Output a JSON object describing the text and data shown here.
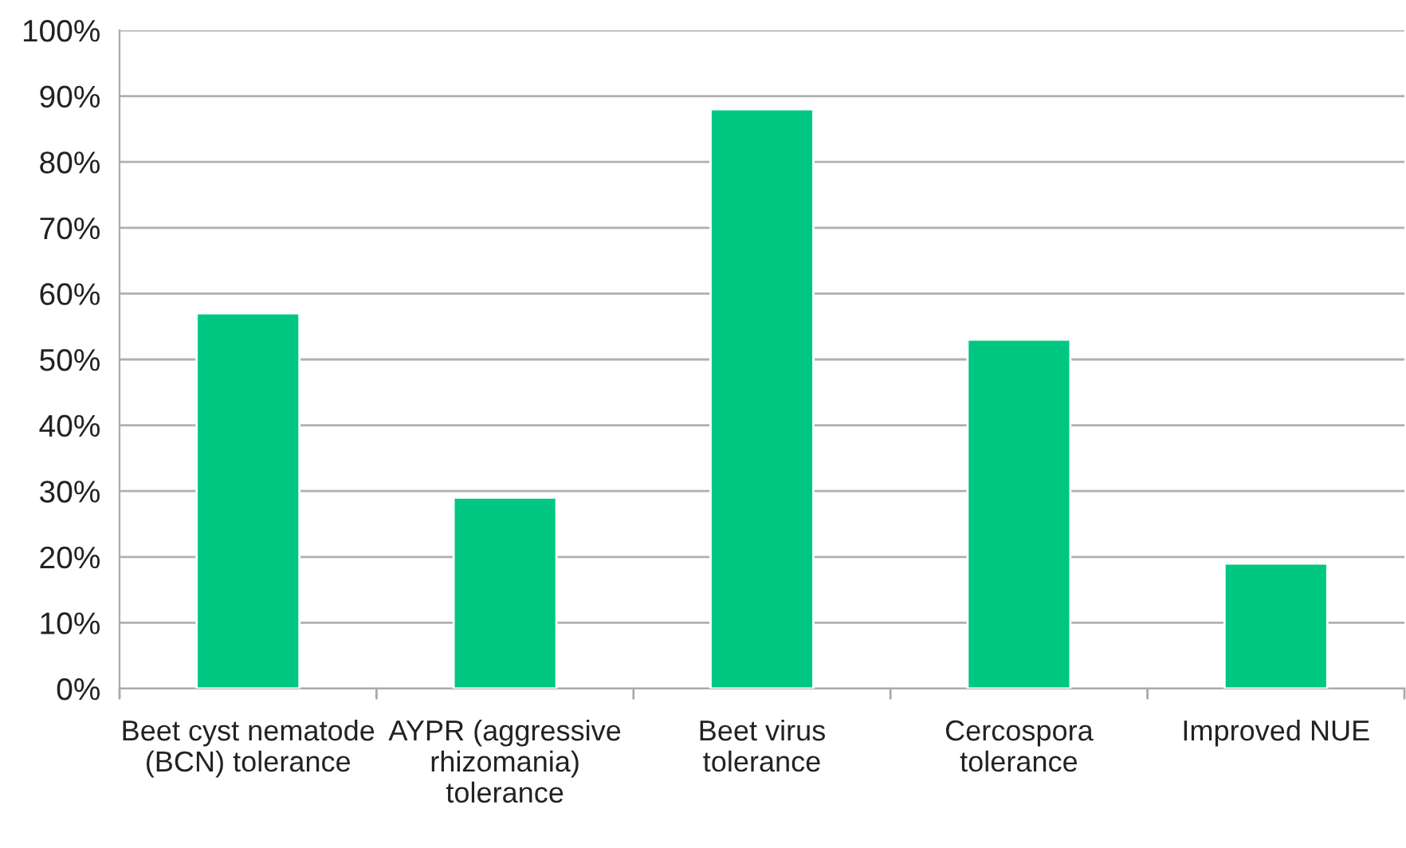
{
  "chart_data": {
    "type": "bar",
    "categories": [
      "Beet cyst nematode\n(BCN) tolerance",
      "AYPR (aggressive\nrhizomania)\ntolerance",
      "Beet virus\ntolerance",
      "Cercospora\ntolerance",
      "Improved NUE"
    ],
    "values": [
      57,
      29,
      88,
      53,
      19
    ],
    "color": "#00c781",
    "ylim": [
      0,
      100
    ],
    "yticks": [
      {
        "value": 0,
        "label": "0%"
      },
      {
        "value": 10,
        "label": "10%"
      },
      {
        "value": 20,
        "label": "20%"
      },
      {
        "value": 30,
        "label": "30%"
      },
      {
        "value": 40,
        "label": "40%"
      },
      {
        "value": 50,
        "label": "50%"
      },
      {
        "value": 60,
        "label": "60%"
      },
      {
        "value": 70,
        "label": "70%"
      },
      {
        "value": 80,
        "label": "80%"
      },
      {
        "value": 90,
        "label": "90%"
      },
      {
        "value": 100,
        "label": "100%"
      }
    ],
    "grid": "y",
    "legend": false
  }
}
